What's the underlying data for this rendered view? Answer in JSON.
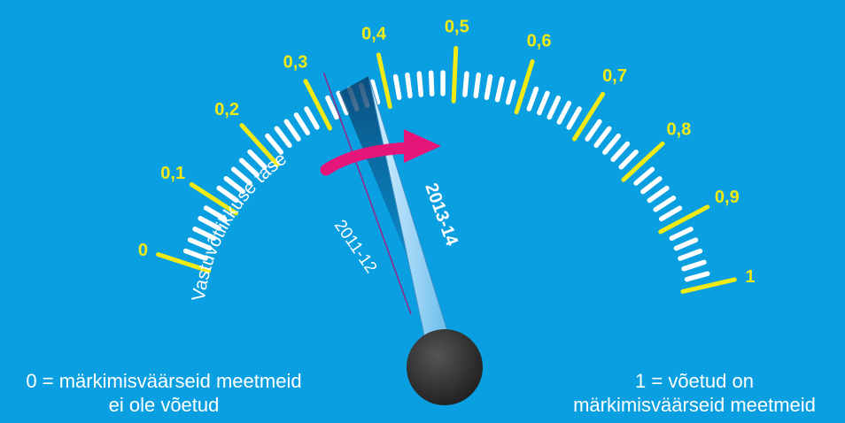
{
  "gauge": {
    "scale_labels": [
      "0",
      "0,1",
      "0,2",
      "0,3",
      "0,4",
      "0,5",
      "0,6",
      "0,7",
      "0,8",
      "0,9",
      "1"
    ],
    "scale_min": 0,
    "scale_max": 1,
    "arc_label": "Vastuvõtlikkuse tase",
    "previous": {
      "label": "2011-12",
      "value": 0.35
    },
    "current": {
      "label": "2013-14",
      "value": 0.385
    }
  },
  "legend": {
    "left_line1": "0 = märkimisväärseid meetmeid",
    "left_line2": "ei ole võetud",
    "right_line1": "1 = võetud on",
    "right_line2": "märkimisväärseid meetmeid"
  },
  "colors": {
    "background": "#0a9fe0",
    "major_tick": "#f2ea14",
    "minor_tick": "#ffffff",
    "arrow": "#e6157a",
    "previous_line": "#8a2d8f",
    "hub": "#2e2e2e"
  },
  "icons": {
    "change_arrow": "curved-arrow-icon",
    "hub": "needle-hub-icon"
  }
}
